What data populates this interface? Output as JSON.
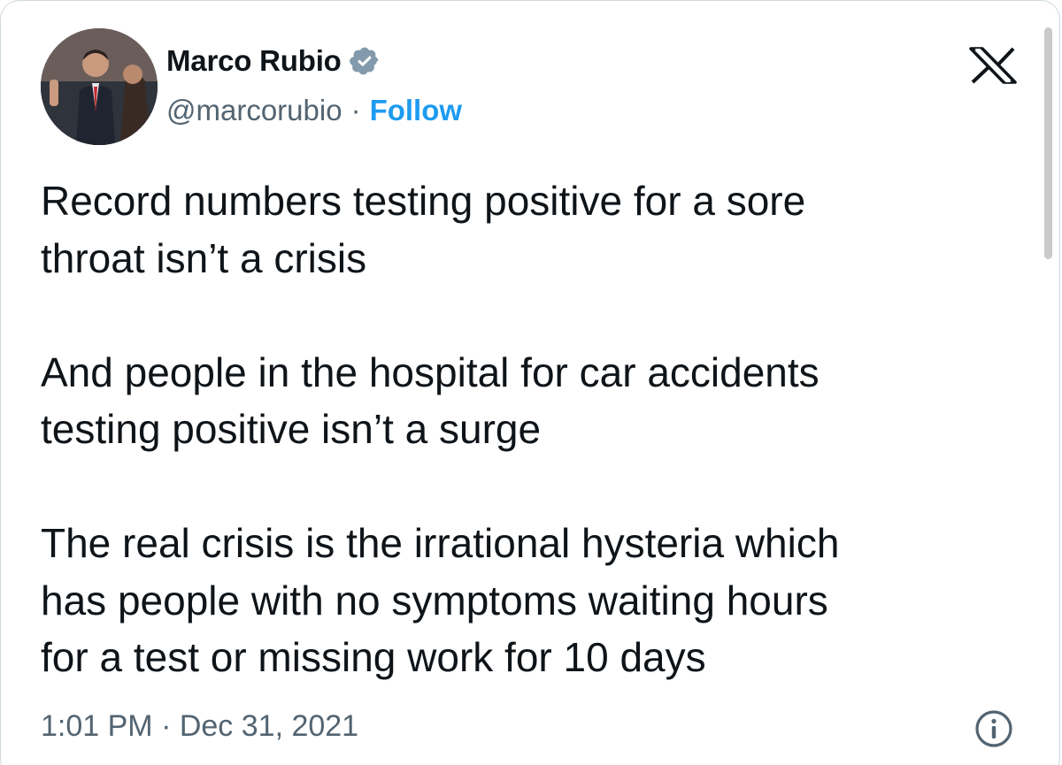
{
  "author": {
    "display_name": "Marco Rubio",
    "handle": "@marcorubio",
    "separator": "·",
    "follow_label": "Follow",
    "verified": true,
    "verified_badge_icon": "verified-badge-icon",
    "avatar": "avatar-photo"
  },
  "header": {
    "brand_icon": "x-logo-icon"
  },
  "tweet": {
    "paragraphs": [
      "Record numbers testing positive for a sore\nthroat isn’t a crisis",
      "And people in the hospital for car accidents\ntesting positive isn’t a surge",
      "The real crisis is the irrational hysteria which\nhas people with no symptoms waiting hours\nfor a test or missing work for 10 days"
    ]
  },
  "footer": {
    "timestamp": "1:01 PM · Dec 31, 2021",
    "info_icon": "info-icon"
  },
  "colors": {
    "text_primary": "#0f1419",
    "text_secondary": "#536471",
    "accent": "#1d9bf0",
    "border": "#cfd9de"
  }
}
